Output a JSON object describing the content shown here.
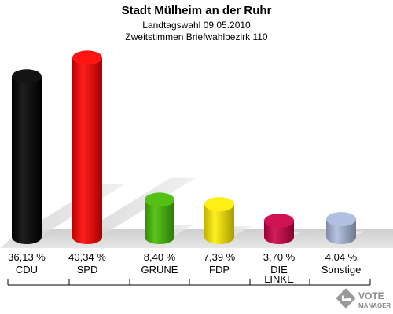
{
  "chart_data": {
    "type": "bar",
    "title": "Stadt Mülheim an der Ruhr",
    "subtitle_1": "Landtagswahl 09.05.2010",
    "subtitle_2": "Zweitstimmen Briefwahlbezirk 110",
    "categories": [
      "CDU",
      "SPD",
      "GRÜNE",
      "FDP",
      "DIE LINKE",
      "Sonstige"
    ],
    "category_lines": [
      [
        "CDU"
      ],
      [
        "SPD"
      ],
      [
        "GRÜNE"
      ],
      [
        "FDP"
      ],
      [
        "DIE",
        "LINKE"
      ],
      [
        "Sonstige"
      ]
    ],
    "values": [
      36.13,
      40.34,
      8.4,
      7.39,
      3.7,
      4.04
    ],
    "value_labels": [
      "36,13 %",
      "40,34 %",
      "8,40 %",
      "7,39 %",
      "3,70 %",
      "4,04 %"
    ],
    "colors": [
      "#000000",
      "#ff0000",
      "#44bb00",
      "#ffee00",
      "#cc0044",
      "#aabbdd"
    ],
    "xlabel": "",
    "ylabel": "",
    "ylim": [
      0,
      42
    ],
    "grid": false
  },
  "logo": {
    "line1": "VOTE",
    "line2": "MANAGER"
  }
}
